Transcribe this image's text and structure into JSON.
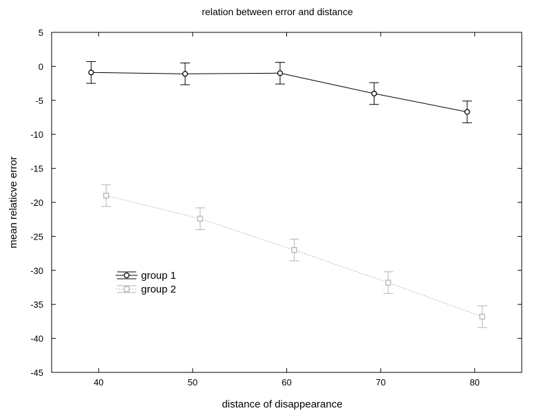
{
  "chart_data": {
    "type": "line",
    "title": "relation between error and distance",
    "xlabel": "distance of disappearance",
    "ylabel": "mean relaticve error",
    "xlim": [
      35,
      85
    ],
    "ylim": [
      -45,
      5
    ],
    "x_ticks": [
      40,
      50,
      60,
      70,
      80
    ],
    "y_ticks": [
      5,
      0,
      -5,
      -10,
      -15,
      -20,
      -25,
      -30,
      -35,
      -40,
      -45
    ],
    "grid": false,
    "legend_position": "left",
    "series": [
      {
        "name": "group 1",
        "color": "#000000",
        "line_style": "solid",
        "marker": "circle",
        "x": [
          39.2,
          49.2,
          59.3,
          69.3,
          79.2
        ],
        "y": [
          -0.9,
          -1.1,
          -1.0,
          -4.0,
          -6.7
        ],
        "err": [
          1.6,
          1.6,
          1.6,
          1.6,
          1.6
        ]
      },
      {
        "name": "group 2",
        "color": "#b4b4b4",
        "line_style": "dotted",
        "marker": "square",
        "x": [
          40.8,
          50.8,
          60.8,
          70.8,
          80.8
        ],
        "y": [
          -19.0,
          -22.4,
          -27.0,
          -31.8,
          -36.8
        ],
        "err": [
          1.6,
          1.6,
          1.6,
          1.6,
          1.6
        ]
      }
    ]
  }
}
